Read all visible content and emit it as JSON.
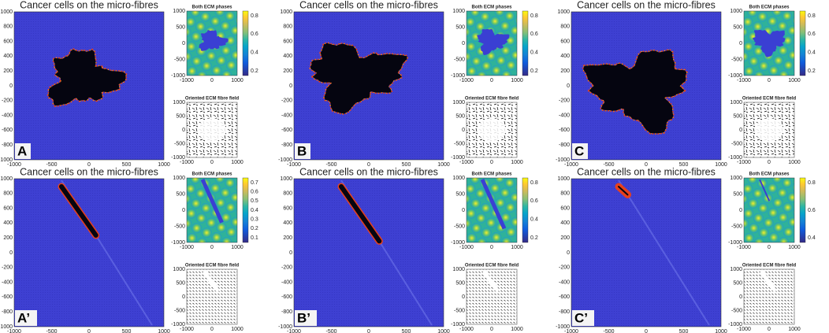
{
  "figure": {
    "main_title": "Cancer cells on the micro-fibres",
    "sub_title_top": "Both ECM phases",
    "sub_title_bottom": "Oriented ECM fibre field",
    "main_xticks": [
      -1000,
      -500,
      0,
      500,
      1000
    ],
    "main_yticks": [
      1000,
      800,
      600,
      400,
      200,
      0,
      -200,
      -400,
      -600,
      -800,
      -1000
    ],
    "sub_xticks": [
      -1000,
      0,
      1000
    ],
    "sub_yticks": [
      1000,
      500,
      0,
      -500,
      -1000
    ],
    "panels": [
      {
        "letter": "A",
        "colorbar_ticks": [
          0.8,
          0.6,
          0.4,
          0.2
        ]
      },
      {
        "letter": "B",
        "colorbar_ticks": [
          0.8,
          0.6,
          0.4,
          0.2
        ]
      },
      {
        "letter": "C",
        "colorbar_ticks": [
          0.8,
          0.6,
          0.4,
          0.2
        ]
      },
      {
        "letter": "A’",
        "colorbar_ticks": [
          0.7,
          0.6,
          0.5,
          0.4,
          0.3,
          0.2,
          0.1
        ]
      },
      {
        "letter": "B’",
        "colorbar_ticks": [
          0.8,
          0.6,
          0.4,
          0.2
        ]
      },
      {
        "letter": "C’",
        "colorbar_ticks": [
          0.8,
          0.6,
          0.4
        ]
      }
    ]
  }
}
